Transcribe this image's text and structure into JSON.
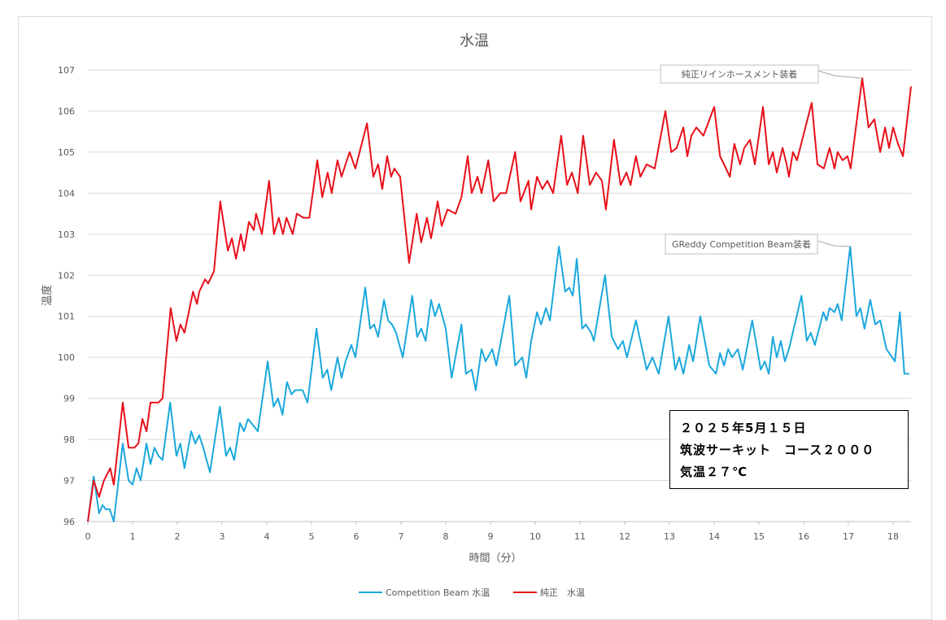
{
  "chart_data": {
    "type": "line",
    "title": "水温",
    "xlabel": "時間（分）",
    "ylabel": "温度",
    "xlim": [
      0,
      18.4
    ],
    "ylim": [
      96,
      107
    ],
    "x_ticks": [
      "0",
      "1",
      "2",
      "3",
      "4",
      "5",
      "6",
      "7",
      "8",
      "9",
      "10",
      "11",
      "12",
      "13",
      "14",
      "15",
      "16",
      "17",
      "18"
    ],
    "y_ticks": [
      "96",
      "97",
      "98",
      "99",
      "100",
      "101",
      "102",
      "103",
      "104",
      "105",
      "106",
      "107"
    ],
    "grid": "horizontal",
    "legend_position": "bottom",
    "series": [
      {
        "name": "Competition Beam 水温",
        "color": "#1BA8DC",
        "points": [
          [
            0,
            96.0
          ],
          [
            0.13,
            97.1
          ],
          [
            0.25,
            96.2
          ],
          [
            0.33,
            96.4
          ],
          [
            0.4,
            96.3
          ],
          [
            0.49,
            96.3
          ],
          [
            0.58,
            96.0
          ],
          [
            0.78,
            97.9
          ],
          [
            0.91,
            97.0
          ],
          [
            1.0,
            96.9
          ],
          [
            1.09,
            97.3
          ],
          [
            1.18,
            97.0
          ],
          [
            1.31,
            97.9
          ],
          [
            1.4,
            97.4
          ],
          [
            1.49,
            97.8
          ],
          [
            1.58,
            97.6
          ],
          [
            1.67,
            97.5
          ],
          [
            1.84,
            98.9
          ],
          [
            1.98,
            97.6
          ],
          [
            2.07,
            97.9
          ],
          [
            2.16,
            97.3
          ],
          [
            2.31,
            98.2
          ],
          [
            2.4,
            97.9
          ],
          [
            2.49,
            98.1
          ],
          [
            2.58,
            97.8
          ],
          [
            2.73,
            97.2
          ],
          [
            2.95,
            98.8
          ],
          [
            3.09,
            97.6
          ],
          [
            3.18,
            97.8
          ],
          [
            3.27,
            97.5
          ],
          [
            3.4,
            98.4
          ],
          [
            3.49,
            98.2
          ],
          [
            3.58,
            98.5
          ],
          [
            3.8,
            98.2
          ],
          [
            4.02,
            99.9
          ],
          [
            4.15,
            98.8
          ],
          [
            4.25,
            99.0
          ],
          [
            4.35,
            98.6
          ],
          [
            4.45,
            99.4
          ],
          [
            4.55,
            99.1
          ],
          [
            4.64,
            99.2
          ],
          [
            4.8,
            99.2
          ],
          [
            4.91,
            98.9
          ],
          [
            5.11,
            100.7
          ],
          [
            5.25,
            99.5
          ],
          [
            5.35,
            99.7
          ],
          [
            5.44,
            99.2
          ],
          [
            5.58,
            100.0
          ],
          [
            5.67,
            99.5
          ],
          [
            5.76,
            99.9
          ],
          [
            5.89,
            100.3
          ],
          [
            5.98,
            100.0
          ],
          [
            6.2,
            101.7
          ],
          [
            6.31,
            100.7
          ],
          [
            6.4,
            100.8
          ],
          [
            6.49,
            100.5
          ],
          [
            6.62,
            101.4
          ],
          [
            6.71,
            100.9
          ],
          [
            6.8,
            100.8
          ],
          [
            6.89,
            100.6
          ],
          [
            7.04,
            100.0
          ],
          [
            7.25,
            101.5
          ],
          [
            7.36,
            100.5
          ],
          [
            7.45,
            100.7
          ],
          [
            7.55,
            100.4
          ],
          [
            7.67,
            101.4
          ],
          [
            7.76,
            101.0
          ],
          [
            7.85,
            101.3
          ],
          [
            8.0,
            100.7
          ],
          [
            8.13,
            99.5
          ],
          [
            8.35,
            100.8
          ],
          [
            8.45,
            99.6
          ],
          [
            8.58,
            99.7
          ],
          [
            8.67,
            99.2
          ],
          [
            8.8,
            100.2
          ],
          [
            8.89,
            99.9
          ],
          [
            9.04,
            100.2
          ],
          [
            9.13,
            99.8
          ],
          [
            9.42,
            101.5
          ],
          [
            9.55,
            99.8
          ],
          [
            9.71,
            100.0
          ],
          [
            9.8,
            99.5
          ],
          [
            9.91,
            100.4
          ],
          [
            10.04,
            101.1
          ],
          [
            10.13,
            100.8
          ],
          [
            10.24,
            101.2
          ],
          [
            10.33,
            100.9
          ],
          [
            10.53,
            102.7
          ],
          [
            10.67,
            101.6
          ],
          [
            10.76,
            101.7
          ],
          [
            10.84,
            101.5
          ],
          [
            10.93,
            102.4
          ],
          [
            11.05,
            100.7
          ],
          [
            11.13,
            100.8
          ],
          [
            11.25,
            100.6
          ],
          [
            11.31,
            100.4
          ],
          [
            11.56,
            102.0
          ],
          [
            11.71,
            100.5
          ],
          [
            11.85,
            100.2
          ],
          [
            11.96,
            100.4
          ],
          [
            12.05,
            100.0
          ],
          [
            12.25,
            100.9
          ],
          [
            12.49,
            99.7
          ],
          [
            12.62,
            100.0
          ],
          [
            12.76,
            99.6
          ],
          [
            12.98,
            101.0
          ],
          [
            13.13,
            99.7
          ],
          [
            13.22,
            100.0
          ],
          [
            13.31,
            99.6
          ],
          [
            13.44,
            100.3
          ],
          [
            13.53,
            99.9
          ],
          [
            13.69,
            101.0
          ],
          [
            13.89,
            99.8
          ],
          [
            14.04,
            99.6
          ],
          [
            14.13,
            100.1
          ],
          [
            14.22,
            99.8
          ],
          [
            14.31,
            100.2
          ],
          [
            14.4,
            100.0
          ],
          [
            14.53,
            100.2
          ],
          [
            14.64,
            99.7
          ],
          [
            14.85,
            100.9
          ],
          [
            15.04,
            99.7
          ],
          [
            15.13,
            99.9
          ],
          [
            15.22,
            99.6
          ],
          [
            15.31,
            100.5
          ],
          [
            15.4,
            100.0
          ],
          [
            15.49,
            100.4
          ],
          [
            15.58,
            99.9
          ],
          [
            15.67,
            100.2
          ],
          [
            15.95,
            101.5
          ],
          [
            16.07,
            100.4
          ],
          [
            16.16,
            100.6
          ],
          [
            16.25,
            100.3
          ],
          [
            16.44,
            101.1
          ],
          [
            16.51,
            100.9
          ],
          [
            16.58,
            101.2
          ],
          [
            16.69,
            101.1
          ],
          [
            16.76,
            101.3
          ],
          [
            16.85,
            100.9
          ],
          [
            17.04,
            102.7
          ],
          [
            17.18,
            101.0
          ],
          [
            17.27,
            101.2
          ],
          [
            17.36,
            100.7
          ],
          [
            17.49,
            101.4
          ],
          [
            17.6,
            100.8
          ],
          [
            17.71,
            100.9
          ],
          [
            17.85,
            100.2
          ],
          [
            18.04,
            99.9
          ],
          [
            18.15,
            101.1
          ],
          [
            18.25,
            99.6
          ],
          [
            18.36,
            99.6
          ]
        ]
      },
      {
        "name": "純正　水温",
        "color": "#E8101A",
        "points": [
          [
            0,
            96.0
          ],
          [
            0.13,
            97.0
          ],
          [
            0.25,
            96.6
          ],
          [
            0.36,
            97.0
          ],
          [
            0.5,
            97.3
          ],
          [
            0.58,
            96.9
          ],
          [
            0.78,
            98.9
          ],
          [
            0.91,
            97.8
          ],
          [
            1.04,
            97.8
          ],
          [
            1.13,
            97.9
          ],
          [
            1.22,
            98.5
          ],
          [
            1.31,
            98.2
          ],
          [
            1.4,
            98.9
          ],
          [
            1.58,
            98.9
          ],
          [
            1.67,
            99.0
          ],
          [
            1.85,
            101.2
          ],
          [
            1.98,
            100.4
          ],
          [
            2.07,
            100.8
          ],
          [
            2.16,
            100.6
          ],
          [
            2.35,
            101.6
          ],
          [
            2.44,
            101.3
          ],
          [
            2.49,
            101.6
          ],
          [
            2.62,
            101.9
          ],
          [
            2.69,
            101.8
          ],
          [
            2.82,
            102.1
          ],
          [
            2.96,
            103.8
          ],
          [
            3.13,
            102.6
          ],
          [
            3.22,
            102.9
          ],
          [
            3.31,
            102.4
          ],
          [
            3.42,
            103.0
          ],
          [
            3.49,
            102.6
          ],
          [
            3.6,
            103.3
          ],
          [
            3.71,
            103.1
          ],
          [
            3.76,
            103.5
          ],
          [
            3.89,
            103.0
          ],
          [
            4.05,
            104.3
          ],
          [
            4.16,
            103.0
          ],
          [
            4.27,
            103.4
          ],
          [
            4.36,
            103.0
          ],
          [
            4.44,
            103.4
          ],
          [
            4.58,
            103.0
          ],
          [
            4.67,
            103.5
          ],
          [
            4.82,
            103.4
          ],
          [
            4.95,
            103.4
          ],
          [
            5.13,
            104.8
          ],
          [
            5.24,
            103.9
          ],
          [
            5.36,
            104.5
          ],
          [
            5.45,
            104.0
          ],
          [
            5.58,
            104.8
          ],
          [
            5.67,
            104.4
          ],
          [
            5.76,
            104.7
          ],
          [
            5.85,
            105.0
          ],
          [
            5.98,
            104.6
          ],
          [
            6.24,
            105.7
          ],
          [
            6.38,
            104.4
          ],
          [
            6.49,
            104.7
          ],
          [
            6.58,
            104.1
          ],
          [
            6.69,
            104.9
          ],
          [
            6.78,
            104.4
          ],
          [
            6.85,
            104.6
          ],
          [
            6.98,
            104.4
          ],
          [
            7.18,
            102.3
          ],
          [
            7.35,
            103.5
          ],
          [
            7.45,
            102.8
          ],
          [
            7.58,
            103.4
          ],
          [
            7.67,
            102.9
          ],
          [
            7.82,
            103.8
          ],
          [
            7.91,
            103.2
          ],
          [
            8.04,
            103.6
          ],
          [
            8.22,
            103.5
          ],
          [
            8.35,
            103.9
          ],
          [
            8.49,
            104.9
          ],
          [
            8.58,
            104.0
          ],
          [
            8.71,
            104.4
          ],
          [
            8.8,
            104.0
          ],
          [
            8.95,
            104.8
          ],
          [
            9.07,
            103.8
          ],
          [
            9.22,
            104.0
          ],
          [
            9.35,
            104.0
          ],
          [
            9.55,
            105.0
          ],
          [
            9.67,
            103.8
          ],
          [
            9.85,
            104.3
          ],
          [
            9.91,
            103.6
          ],
          [
            10.04,
            104.4
          ],
          [
            10.16,
            104.1
          ],
          [
            10.27,
            104.3
          ],
          [
            10.4,
            104.0
          ],
          [
            10.58,
            105.4
          ],
          [
            10.71,
            104.2
          ],
          [
            10.82,
            104.5
          ],
          [
            10.95,
            104.0
          ],
          [
            11.07,
            105.4
          ],
          [
            11.22,
            104.2
          ],
          [
            11.36,
            104.5
          ],
          [
            11.49,
            104.3
          ],
          [
            11.58,
            103.6
          ],
          [
            11.76,
            105.3
          ],
          [
            11.91,
            104.2
          ],
          [
            12.04,
            104.5
          ],
          [
            12.13,
            104.2
          ],
          [
            12.25,
            104.9
          ],
          [
            12.35,
            104.4
          ],
          [
            12.49,
            104.7
          ],
          [
            12.67,
            104.6
          ],
          [
            12.91,
            106.0
          ],
          [
            13.04,
            105.0
          ],
          [
            13.16,
            105.1
          ],
          [
            13.31,
            105.6
          ],
          [
            13.4,
            104.9
          ],
          [
            13.49,
            105.4
          ],
          [
            13.6,
            105.6
          ],
          [
            13.76,
            105.4
          ],
          [
            14.0,
            106.1
          ],
          [
            14.13,
            104.9
          ],
          [
            14.22,
            104.7
          ],
          [
            14.35,
            104.4
          ],
          [
            14.45,
            105.2
          ],
          [
            14.58,
            104.7
          ],
          [
            14.67,
            105.1
          ],
          [
            14.8,
            105.3
          ],
          [
            14.91,
            104.7
          ],
          [
            15.09,
            106.1
          ],
          [
            15.22,
            104.7
          ],
          [
            15.31,
            105.0
          ],
          [
            15.4,
            104.5
          ],
          [
            15.53,
            105.1
          ],
          [
            15.62,
            104.7
          ],
          [
            15.67,
            104.4
          ],
          [
            15.76,
            105.0
          ],
          [
            15.85,
            104.8
          ],
          [
            16.18,
            106.2
          ],
          [
            16.31,
            104.7
          ],
          [
            16.45,
            104.6
          ],
          [
            16.58,
            105.1
          ],
          [
            16.69,
            104.6
          ],
          [
            16.76,
            105.0
          ],
          [
            16.87,
            104.8
          ],
          [
            16.98,
            104.9
          ],
          [
            17.05,
            104.6
          ],
          [
            17.31,
            106.8
          ],
          [
            17.45,
            105.6
          ],
          [
            17.58,
            105.8
          ],
          [
            17.71,
            105.0
          ],
          [
            17.82,
            105.6
          ],
          [
            17.91,
            105.1
          ],
          [
            18.0,
            105.6
          ],
          [
            18.11,
            105.2
          ],
          [
            18.22,
            104.9
          ],
          [
            18.4,
            106.6
          ]
        ]
      }
    ],
    "annotations": [
      {
        "text": "純正リインホースメント装着",
        "series": 1,
        "x": 17.31,
        "y": 106.8
      },
      {
        "text": "GReddy Competition Beam装着",
        "series": 0,
        "x": 17.04,
        "y": 102.7
      }
    ]
  },
  "info_box": {
    "line1": "２０２５年5月１５日",
    "line2": "筑波サーキット　コース２０００",
    "line3": "気温２７℃"
  }
}
